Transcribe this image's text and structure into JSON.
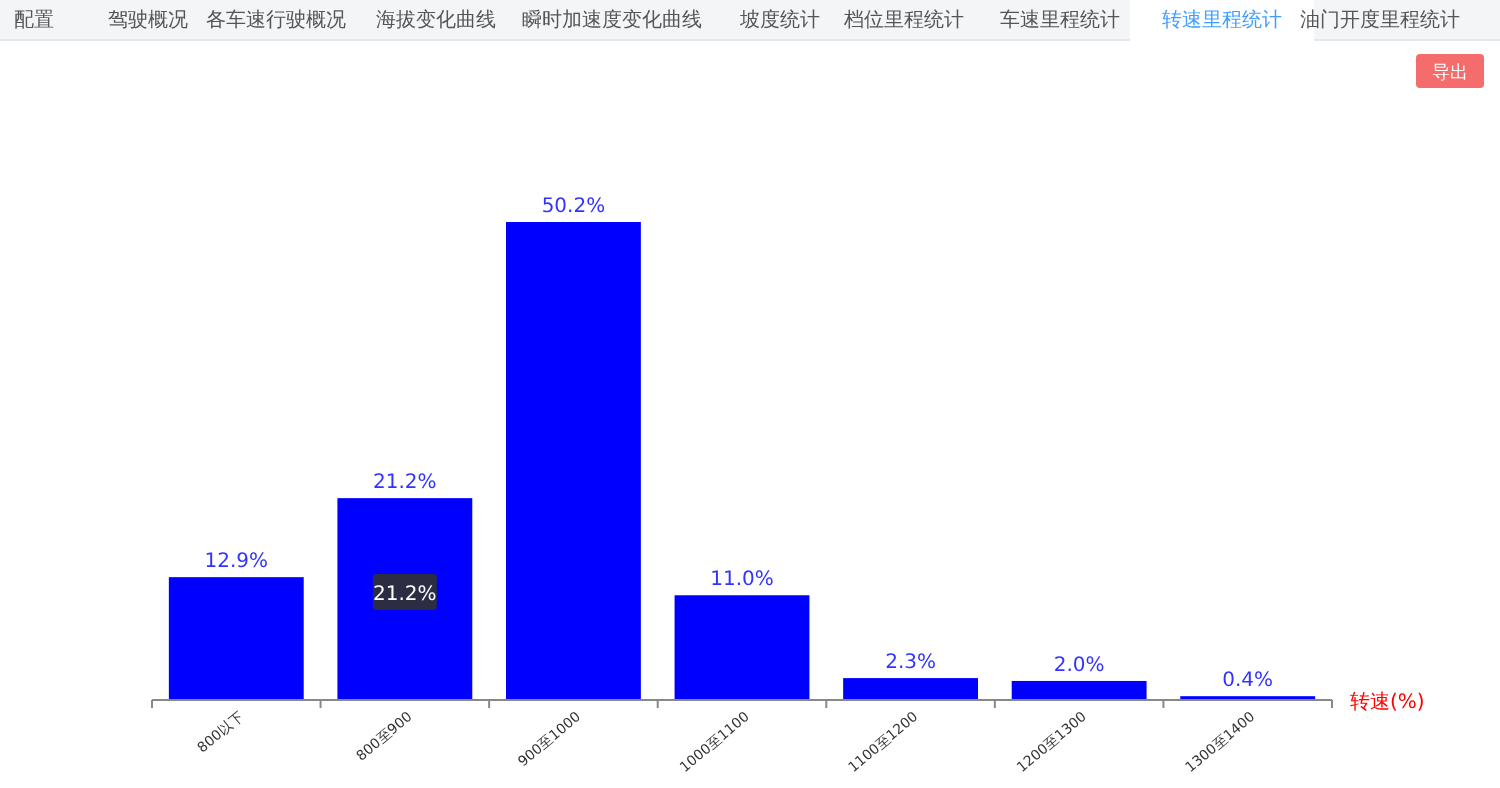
{
  "chart_data": {
    "type": "bar",
    "categories": [
      "800以下",
      "800至900",
      "900至1000",
      "1000至1100",
      "1100至1200",
      "1200至1300",
      "1300至1400"
    ],
    "values": [
      12.9,
      21.2,
      50.2,
      11.0,
      2.3,
      2.0,
      0.4
    ],
    "value_labels": [
      "12.9%",
      "21.2%",
      "50.2%",
      "11.0%",
      "2.3%",
      "2.0%",
      "0.4%"
    ],
    "color": "#0000ff",
    "xlabel": "转速(%)",
    "annotations": [
      "配置",
      "驾驶概况",
      "各车速行驶概况",
      "海拔变化曲线",
      "瞬时加速度变化曲线",
      "坡度统计",
      "档位里程统计",
      "车速里程统计",
      "转速里程统计",
      "油门开度里程统计",
      "导出",
      "21.2%"
    ]
  }
}
